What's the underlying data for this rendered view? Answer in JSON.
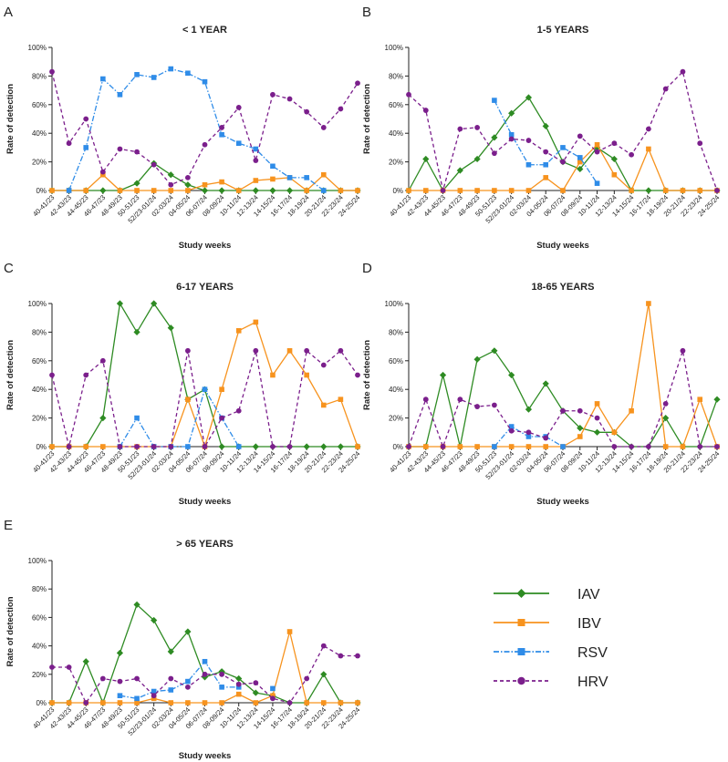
{
  "figure": {
    "legend": [
      {
        "name": "IAV",
        "color": "#2e8b23",
        "marker": "diamond",
        "dash": "solid"
      },
      {
        "name": "IBV",
        "color": "#f7931e",
        "marker": "square",
        "dash": "solid"
      },
      {
        "name": "RSV",
        "color": "#2f8ce8",
        "marker": "square",
        "dash": "dashdot"
      },
      {
        "name": "HRV",
        "color": "#7b1f8c",
        "marker": "circle",
        "dash": "dashed"
      }
    ]
  },
  "chart_data": [
    {
      "panel": "A",
      "type": "line",
      "title": "< 1 YEAR",
      "xlabel": "Study weeks",
      "ylabel": "Rate of detection",
      "ylim": [
        0,
        100
      ],
      "yticks": [
        "0%",
        "20%",
        "40%",
        "60%",
        "80%",
        "100%"
      ],
      "categories": [
        "40-41/23",
        "42-43/23",
        "44-45/23",
        "46-47/23",
        "48-49/23",
        "50-51/23",
        "52/23-01/24",
        "02-03/24",
        "04-05/24",
        "06-07/24",
        "08-09/24",
        "10-11/24",
        "12-13/24",
        "14-15/24",
        "16-17/24",
        "18-19/24",
        "20-21/24",
        "22-23/24",
        "24-25/24"
      ],
      "series": [
        {
          "name": "IAV",
          "values": [
            0,
            0,
            0,
            0,
            0,
            5,
            19,
            11,
            4,
            0,
            0,
            0,
            0,
            0,
            0,
            0,
            0,
            0,
            0
          ]
        },
        {
          "name": "IBV",
          "values": [
            0,
            0,
            0,
            11,
            0,
            0,
            0,
            0,
            0,
            4,
            6,
            0,
            7,
            8,
            9,
            0,
            11,
            0,
            0
          ]
        },
        {
          "name": "RSV",
          "values": [
            null,
            0,
            30,
            78,
            67,
            81,
            79,
            85,
            82,
            76,
            39,
            33,
            29,
            17,
            9,
            9,
            0,
            null,
            null
          ]
        },
        {
          "name": "HRV",
          "values": [
            83,
            33,
            50,
            13,
            29,
            27,
            18,
            4,
            9,
            32,
            44,
            58,
            21,
            67,
            64,
            55,
            44,
            57,
            75
          ]
        }
      ]
    },
    {
      "panel": "B",
      "type": "line",
      "title": "1-5 YEARS",
      "xlabel": "Study weeks",
      "ylabel": "Rate of detection",
      "ylim": [
        0,
        100
      ],
      "yticks": [
        "0%",
        "20%",
        "40%",
        "60%",
        "80%",
        "100%"
      ],
      "categories": [
        "40-41/23",
        "42-43/23",
        "44-45/23",
        "46-47/23",
        "48-49/23",
        "50-51/23",
        "52/23-01/24",
        "02-03/24",
        "04-05/24",
        "06-07/24",
        "08-09/24",
        "10-11/24",
        "12-13/24",
        "14-15/24",
        "16-17/24",
        "18-19/24",
        "20-21/24",
        "22-23/24",
        "24-25/24"
      ],
      "series": [
        {
          "name": "IAV",
          "values": [
            0,
            22,
            0,
            14,
            22,
            37,
            54,
            65,
            45,
            20,
            15,
            30,
            22,
            0,
            0,
            0,
            0,
            0,
            0
          ]
        },
        {
          "name": "IBV",
          "values": [
            0,
            0,
            0,
            0,
            0,
            0,
            0,
            0,
            9,
            0,
            20,
            32,
            11,
            0,
            29,
            0,
            0,
            0,
            0
          ]
        },
        {
          "name": "RSV",
          "values": [
            null,
            null,
            null,
            null,
            null,
            63,
            39,
            18,
            18,
            30,
            23,
            5,
            null,
            null,
            null,
            null,
            null,
            null,
            null
          ]
        },
        {
          "name": "HRV",
          "values": [
            67,
            56,
            0,
            43,
            44,
            26,
            36,
            35,
            27,
            20,
            38,
            27,
            33,
            25,
            43,
            71,
            83,
            33,
            0
          ]
        }
      ]
    },
    {
      "panel": "C",
      "type": "line",
      "title": "6-17 YEARS",
      "xlabel": "Study weeks",
      "ylabel": "Rate of detection",
      "ylim": [
        0,
        100
      ],
      "yticks": [
        "0%",
        "20%",
        "40%",
        "60%",
        "80%",
        "100%"
      ],
      "categories": [
        "40-41/23",
        "42-43/23",
        "44-45/23",
        "46-47/23",
        "48-49/23",
        "50-51/23",
        "52/23-01/24",
        "02-03/24",
        "04-05/24",
        "06-07/24",
        "08-09/24",
        "10-11/24",
        "12-13/24",
        "14-15/24",
        "16-17/24",
        "18-19/24",
        "20-21/24",
        "22-23/24",
        "24-25/24"
      ],
      "series": [
        {
          "name": "IAV",
          "values": [
            0,
            0,
            0,
            20,
            100,
            80,
            100,
            83,
            33,
            40,
            0,
            0,
            0,
            0,
            0,
            0,
            0,
            0,
            0
          ]
        },
        {
          "name": "IBV",
          "values": [
            0,
            0,
            0,
            0,
            0,
            0,
            0,
            0,
            33,
            0,
            40,
            81,
            87,
            50,
            67,
            50,
            29,
            33,
            0
          ]
        },
        {
          "name": "RSV",
          "values": [
            null,
            null,
            null,
            null,
            0,
            20,
            0,
            0,
            0,
            40,
            20,
            0,
            null,
            null,
            null,
            null,
            null,
            null,
            null
          ]
        },
        {
          "name": "HRV",
          "values": [
            50,
            0,
            50,
            60,
            0,
            0,
            0,
            0,
            67,
            0,
            20,
            25,
            67,
            0,
            0,
            67,
            57,
            67,
            50
          ]
        }
      ]
    },
    {
      "panel": "D",
      "type": "line",
      "title": "18-65 YEARS",
      "xlabel": "Study weeks",
      "ylabel": "Rate of detection",
      "ylim": [
        0,
        100
      ],
      "yticks": [
        "0%",
        "20%",
        "40%",
        "60%",
        "80%",
        "100%"
      ],
      "categories": [
        "40-41/23",
        "42-43/23",
        "44-45/23",
        "46-47/23",
        "48-49/23",
        "50-51/23",
        "52/23-01/24",
        "02-03/24",
        "04-05/24",
        "06-07/24",
        "08-09/24",
        "10-11/24",
        "12-13/24",
        "14-15/24",
        "16-17/24",
        "18-19/24",
        "20-21/24",
        "22-23/24",
        "24-25/24"
      ],
      "series": [
        {
          "name": "IAV",
          "values": [
            0,
            0,
            50,
            0,
            61,
            67,
            50,
            26,
            44,
            25,
            13,
            10,
            10,
            0,
            0,
            20,
            0,
            0,
            33
          ]
        },
        {
          "name": "IBV",
          "values": [
            0,
            0,
            0,
            0,
            0,
            0,
            0,
            0,
            0,
            0,
            7,
            30,
            10,
            25,
            100,
            0,
            0,
            33,
            0
          ]
        },
        {
          "name": "RSV",
          "values": [
            null,
            null,
            null,
            null,
            null,
            0,
            14,
            7,
            7,
            0,
            null,
            null,
            null,
            null,
            null,
            null,
            null,
            null,
            null
          ]
        },
        {
          "name": "HRV",
          "values": [
            0,
            33,
            0,
            33,
            28,
            29,
            11,
            10,
            6,
            25,
            25,
            20,
            0,
            0,
            0,
            30,
            67,
            0,
            0
          ]
        }
      ]
    },
    {
      "panel": "E",
      "type": "line",
      "title": "> 65 YEARS",
      "xlabel": "Study weeks",
      "ylabel": "Rate of detection",
      "ylim": [
        0,
        100
      ],
      "yticks": [
        "0%",
        "20%",
        "40%",
        "60%",
        "80%",
        "100%"
      ],
      "categories": [
        "40-41/23",
        "42-43/23",
        "44-45/23",
        "46-47/23",
        "48-49/23",
        "50-51/23",
        "52/23-01/24",
        "02-03/24",
        "04-05/24",
        "06-07/24",
        "08-09/24",
        "10-11/24",
        "12-13/24",
        "14-15/24",
        "16-17/24",
        "18-19/24",
        "20-21/24",
        "22-23/24",
        "24-25/24"
      ],
      "series": [
        {
          "name": "IAV",
          "values": [
            0,
            0,
            29,
            0,
            35,
            69,
            58,
            36,
            50,
            18,
            22,
            17,
            7,
            5,
            0,
            0,
            20,
            0,
            0
          ]
        },
        {
          "name": "IBV",
          "values": [
            0,
            0,
            0,
            0,
            0,
            0,
            3,
            0,
            0,
            0,
            0,
            6,
            0,
            5,
            50,
            0,
            0,
            0,
            0
          ]
        },
        {
          "name": "RSV",
          "values": [
            null,
            null,
            null,
            null,
            5,
            3,
            8,
            9,
            15,
            29,
            11,
            11,
            null,
            10,
            null,
            null,
            null,
            null,
            null
          ]
        },
        {
          "name": "HRV",
          "values": [
            25,
            25,
            0,
            17,
            15,
            17,
            5,
            17,
            11,
            20,
            20,
            13,
            14,
            3,
            0,
            17,
            40,
            33,
            33
          ]
        }
      ]
    }
  ]
}
